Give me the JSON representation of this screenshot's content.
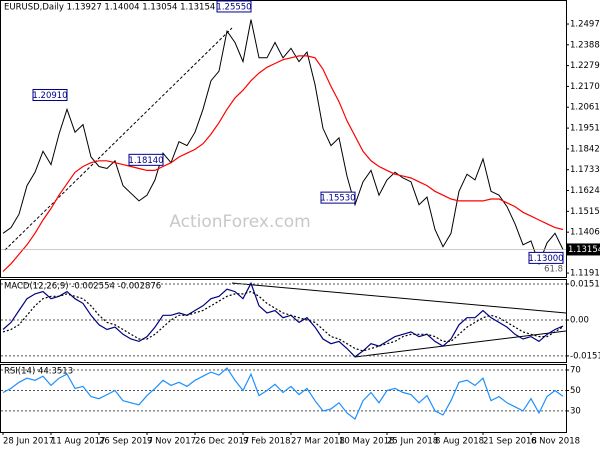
{
  "chart_data": [
    {
      "type": "line",
      "title": "EURUSD,Daily  1.13927 1.14004 1.13054 1.13154",
      "watermark": "ActionForex.com",
      "fib_label": "61.8",
      "categories": [
        "28 Jun 2017",
        null,
        null,
        null,
        null,
        null,
        "11 Aug 2017",
        null,
        null,
        null,
        null,
        null,
        "26 Sep 2017",
        null,
        null,
        null,
        null,
        null,
        "9 Nov 2017",
        null,
        null,
        null,
        null,
        null,
        "26 Dec 2017",
        null,
        null,
        null,
        null,
        null,
        "9 Feb 2018",
        null,
        null,
        null,
        null,
        null,
        "27 Mar 2018",
        null,
        null,
        null,
        null,
        null,
        "10 May 2018",
        null,
        null,
        null,
        null,
        null,
        "25 Jun 2018",
        null,
        null,
        null,
        null,
        null,
        "8 Aug 2018",
        null,
        null,
        null,
        null,
        null,
        "21 Sep 2018",
        null,
        null,
        null,
        null,
        null,
        "6 Nov 2018",
        null,
        null,
        null,
        null
      ],
      "series": [
        {
          "color": "#000000",
          "values": [
            1.14,
            1.143,
            1.15,
            1.165,
            1.172,
            1.183,
            1.176,
            1.192,
            1.205,
            1.193,
            1.197,
            1.18,
            1.175,
            1.174,
            1.178,
            1.165,
            1.161,
            1.157,
            1.16,
            1.168,
            1.182,
            1.177,
            1.188,
            1.186,
            1.193,
            1.205,
            1.22,
            1.225,
            1.246,
            1.24,
            1.23,
            1.252,
            1.232,
            1.232,
            1.24,
            1.232,
            1.237,
            1.23,
            1.235,
            1.218,
            1.195,
            1.186,
            1.19,
            1.17,
            1.155,
            1.167,
            1.173,
            1.16,
            1.168,
            1.172,
            1.169,
            1.167,
            1.155,
            1.159,
            1.142,
            1.133,
            1.14,
            1.162,
            1.171,
            1.168,
            1.179,
            1.162,
            1.16,
            1.154,
            1.145,
            1.134,
            1.136,
            1.124,
            1.135,
            1.14,
            1.13154
          ]
        },
        {
          "color": "#ff0000",
          "values": [
            1.12,
            1.124,
            1.129,
            1.134,
            1.14,
            1.147,
            1.153,
            1.16,
            1.166,
            1.172,
            1.175,
            1.177,
            1.178,
            1.178,
            1.177,
            1.176,
            1.175,
            1.174,
            1.173,
            1.173,
            1.175,
            1.177,
            1.18,
            1.182,
            1.184,
            1.187,
            1.192,
            1.198,
            1.205,
            1.211,
            1.215,
            1.22,
            1.224,
            1.227,
            1.229,
            1.231,
            1.232,
            1.233,
            1.233,
            1.232,
            1.226,
            1.217,
            1.209,
            1.199,
            1.191,
            1.183,
            1.178,
            1.175,
            1.173,
            1.171,
            1.17,
            1.169,
            1.167,
            1.165,
            1.162,
            1.16,
            1.158,
            1.157,
            1.157,
            1.157,
            1.157,
            1.158,
            1.158,
            1.156,
            1.154,
            1.151,
            1.149,
            1.147,
            1.145,
            1.143,
            1.142
          ]
        }
      ],
      "ylim": [
        1.1171,
        1.2623
      ],
      "yticks": [
        {
          "value": 1.2497,
          "label": "1.24970"
        },
        {
          "value": 1.2388,
          "label": "1.23880"
        },
        {
          "value": 1.2279,
          "label": "1.22790"
        },
        {
          "value": 1.217,
          "label": "1.21700"
        },
        {
          "value": 1.2061,
          "label": "1.20610"
        },
        {
          "value": 1.19515,
          "label": "1.19515"
        },
        {
          "value": 1.18425,
          "label": "1.18425"
        },
        {
          "value": 1.17335,
          "label": "1.17335"
        },
        {
          "value": 1.16245,
          "label": "1.16245"
        },
        {
          "value": 1.1515,
          "label": "1.15150"
        },
        {
          "value": 1.1406,
          "label": "1.14060"
        },
        {
          "value": 1.11915,
          "label": "1.11915"
        }
      ],
      "grid": false,
      "last_price": {
        "value": 1.13154,
        "label": "1.13154"
      },
      "annotations": [
        {
          "value": 1.2091,
          "label": "1.20910"
        },
        {
          "value": 1.2555,
          "label": "1.25550"
        },
        {
          "value": 1.1553,
          "label": "1.15530"
        },
        {
          "value": 1.1814,
          "label": "1.18140"
        },
        {
          "value": 1.13,
          "label": "1.13000"
        }
      ]
    },
    {
      "type": "line",
      "title": "MACD(12,26,9) -0.002554 -0.002876",
      "series": [
        {
          "color": "#000080",
          "values": [
            -0.004,
            -0.001,
            0.004,
            0.009,
            0.011,
            0.012,
            0.009,
            0.01,
            0.012,
            0.009,
            0.007,
            0.002,
            -0.002,
            -0.004,
            -0.003,
            -0.006,
            -0.008,
            -0.009,
            -0.007,
            -0.003,
            0.002,
            0.002,
            0.003,
            0.002,
            0.004,
            0.006,
            0.009,
            0.01,
            0.013,
            0.012,
            0.009,
            0.0155,
            0.006,
            0.003,
            0.004,
            0.001,
            0.002,
            -0.001,
            0.001,
            -0.003,
            -0.008,
            -0.01,
            -0.009,
            -0.012,
            -0.0155,
            -0.013,
            -0.01,
            -0.011,
            -0.009,
            -0.007,
            -0.006,
            -0.005,
            -0.007,
            -0.006,
            -0.009,
            -0.011,
            -0.008,
            -0.002,
            0.001,
            0.001,
            0.004,
            0.001,
            -0.001,
            -0.003,
            -0.006,
            -0.008,
            -0.007,
            -0.009,
            -0.006,
            -0.004,
            -0.002554
          ]
        },
        {
          "color": "#000000",
          "dash": true,
          "values": [
            -0.005,
            -0.004,
            -0.002,
            0.002,
            0.006,
            0.009,
            0.01,
            0.01,
            0.011,
            0.01,
            0.009,
            0.006,
            0.002,
            -0.001,
            -0.002,
            -0.004,
            -0.006,
            -0.008,
            -0.008,
            -0.006,
            -0.003,
            0.0,
            0.002,
            0.002,
            0.003,
            0.004,
            0.006,
            0.008,
            0.01,
            0.011,
            0.011,
            0.012,
            0.01,
            0.007,
            0.005,
            0.003,
            0.002,
            0.001,
            0.0,
            -0.001,
            -0.004,
            -0.007,
            -0.008,
            -0.01,
            -0.012,
            -0.013,
            -0.012,
            -0.011,
            -0.01,
            -0.009,
            -0.007,
            -0.006,
            -0.006,
            -0.006,
            -0.007,
            -0.009,
            -0.009,
            -0.006,
            -0.003,
            -0.001,
            0.001,
            0.002,
            0.001,
            -0.001,
            -0.003,
            -0.005,
            -0.006,
            -0.007,
            -0.007,
            -0.005,
            -0.002876
          ]
        }
      ],
      "ylim": [
        -0.0177,
        0.0173
      ],
      "yticks": [
        0.015178,
        {
          "value": 0,
          "label": "0.00"
        },
        -0.015126
      ],
      "grid": true
    },
    {
      "type": "line",
      "title": "RSI(14) 44.3513",
      "series": [
        {
          "color": "#1e90ff",
          "values": [
            48,
            52,
            58,
            62,
            60,
            64,
            55,
            62,
            66,
            52,
            54,
            44,
            42,
            46,
            50,
            40,
            38,
            36,
            45,
            52,
            60,
            55,
            58,
            54,
            60,
            64,
            68,
            65,
            72,
            60,
            50,
            66,
            45,
            50,
            56,
            48,
            54,
            46,
            52,
            40,
            30,
            32,
            38,
            28,
            22,
            40,
            48,
            38,
            50,
            52,
            48,
            46,
            38,
            45,
            30,
            26,
            40,
            58,
            60,
            55,
            62,
            40,
            44,
            38,
            34,
            30,
            42,
            28,
            44,
            50,
            44.3513
          ]
        }
      ],
      "ylim": [
        9.4,
        75.9
      ],
      "yticks": [
        70,
        50,
        30
      ],
      "grid": true
    }
  ]
}
